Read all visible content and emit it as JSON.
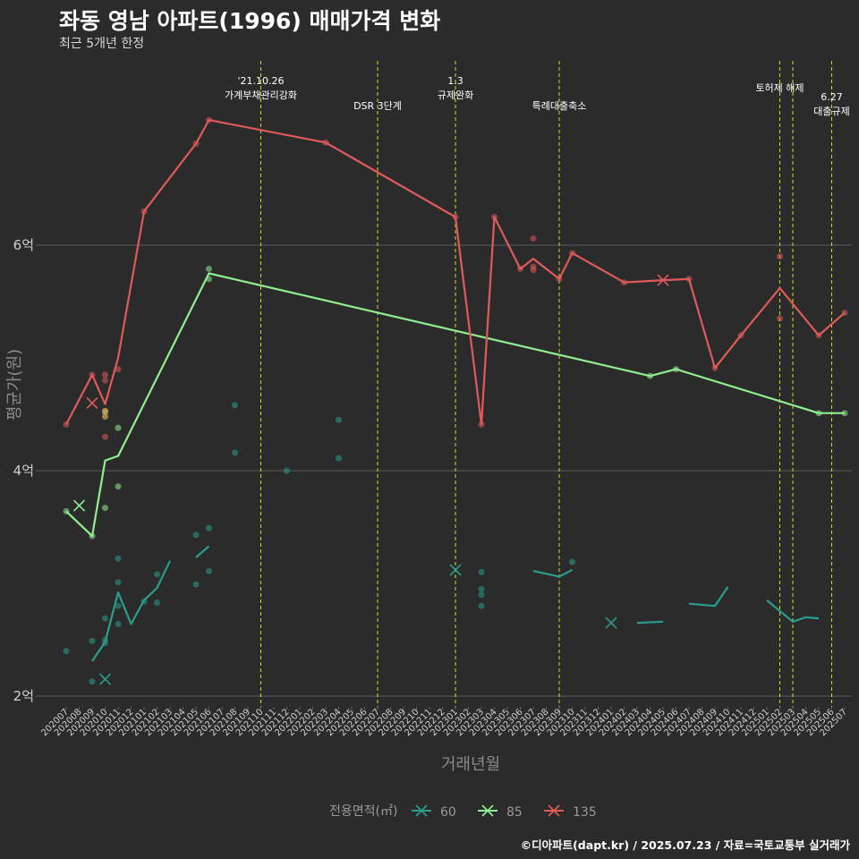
{
  "title": "좌동 영남 아파트(1996) 매매가격 변화",
  "subtitle": "최근 5개년 한정",
  "caption": "©디아파트(dapt.kr) / 2025.07.23 / 자료=국토교통부 실거래가",
  "chart_data": {
    "type": "line",
    "xlabel": "거래년월",
    "ylabel": "평균가(원)",
    "ylim": [
      1.95,
      7.4
    ],
    "yticks": [
      {
        "value": 2,
        "label": "2억"
      },
      {
        "value": 4,
        "label": "4억"
      },
      {
        "value": 6,
        "label": "6억"
      }
    ],
    "grid": true,
    "legend_title": "전용면적(㎡)",
    "legend_position": "bottom",
    "categories": [
      "202007",
      "202008",
      "202009",
      "202010",
      "202011",
      "202012",
      "202101",
      "202102",
      "202103",
      "202104",
      "202105",
      "202106",
      "202107",
      "202108",
      "202109",
      "202110",
      "202111",
      "202112",
      "202201",
      "202202",
      "202203",
      "202204",
      "202205",
      "202206",
      "202207",
      "202208",
      "202209",
      "202210",
      "202211",
      "202212",
      "202301",
      "202302",
      "202303",
      "202304",
      "202305",
      "202306",
      "202307",
      "202308",
      "202309",
      "202310",
      "202311",
      "202312",
      "202401",
      "202402",
      "202403",
      "202404",
      "202405",
      "202406",
      "202407",
      "202408",
      "202409",
      "202410",
      "202411",
      "202412",
      "202501",
      "202502",
      "202503",
      "202504",
      "202505",
      "202506",
      "202507"
    ],
    "events": [
      {
        "x": 15.0,
        "lines": [
          "'21.10.26",
          "가계부채관리강화"
        ],
        "level": 0
      },
      {
        "x": 24.0,
        "lines": [
          "DSR 3단계"
        ],
        "level": 1
      },
      {
        "x": 30.0,
        "lines": [
          "1.3",
          "규제완화"
        ],
        "level": 0
      },
      {
        "x": 38.0,
        "lines": [
          "특례대출축소"
        ],
        "level": 1
      },
      {
        "x": 55.0,
        "lines": [
          "토허제 해제"
        ],
        "level": 2
      },
      {
        "x": 56.0,
        "lines": [],
        "level": 2
      },
      {
        "x": 59.0,
        "lines": [
          "6.27",
          "대출규제"
        ],
        "level": 3
      }
    ],
    "series": [
      {
        "name": "60",
        "color": "#2a9d8f",
        "line": [
          [
            [
              2,
              2.31
            ],
            [
              3,
              2.48
            ],
            [
              4,
              2.92
            ],
            [
              5,
              2.64
            ],
            [
              6,
              2.85
            ],
            [
              7,
              2.96
            ],
            [
              8,
              3.2
            ]
          ],
          [
            [
              10,
              3.23
            ],
            [
              11,
              3.33
            ]
          ],
          [
            [
              31,
              3.12
            ]
          ],
          [
            [
              36,
              3.11
            ],
            [
              38,
              3.06
            ],
            [
              39,
              3.12
            ]
          ],
          [
            [
              42,
              2.65
            ]
          ],
          [
            [
              44,
              2.65
            ],
            [
              46,
              2.66
            ]
          ],
          [
            [
              48,
              2.82
            ],
            [
              50,
              2.8
            ],
            [
              51,
              2.97
            ]
          ],
          [
            [
              54,
              2.85
            ],
            [
              56,
              2.66
            ],
            [
              57,
              2.7
            ],
            [
              58,
              2.69
            ]
          ]
        ],
        "points": [
          [
            0,
            2.4
          ],
          [
            2,
            2.49
          ],
          [
            2,
            2.13
          ],
          [
            3,
            2.69
          ],
          [
            3,
            2.5
          ],
          [
            3,
            2.47
          ],
          [
            4,
            3.22
          ],
          [
            4,
            3.01
          ],
          [
            4,
            2.8
          ],
          [
            4,
            2.64
          ],
          [
            6,
            2.84
          ],
          [
            7,
            3.08
          ],
          [
            7,
            2.83
          ],
          [
            10,
            3.43
          ],
          [
            10,
            2.99
          ],
          [
            11,
            3.49
          ],
          [
            11,
            3.11
          ],
          [
            13,
            4.58
          ],
          [
            13,
            4.16
          ],
          [
            17,
            4.0
          ],
          [
            21,
            4.45
          ],
          [
            21,
            4.11
          ],
          [
            32,
            3.1
          ],
          [
            32,
            2.95
          ],
          [
            32,
            2.9
          ],
          [
            32,
            2.8
          ],
          [
            39,
            3.19
          ]
        ],
        "markers": [
          [
            3,
            2.15
          ],
          [
            30,
            3.12
          ],
          [
            42,
            2.65
          ]
        ]
      },
      {
        "name": "85",
        "color": "#90ee90",
        "line": [
          [
            [
              0,
              3.64
            ],
            [
              2,
              3.42
            ],
            [
              3,
              4.09
            ],
            [
              4,
              4.13
            ],
            [
              11,
              5.75
            ],
            [
              45,
              4.84
            ],
            [
              47,
              4.9
            ],
            [
              58,
              4.51
            ],
            [
              60,
              4.51
            ]
          ]
        ],
        "points": [
          [
            0,
            3.64
          ],
          [
            2,
            3.42
          ],
          [
            3,
            3.67
          ],
          [
            3,
            4.52
          ],
          [
            4,
            4.38
          ],
          [
            4,
            3.86
          ],
          [
            11,
            5.79
          ],
          [
            11,
            5.7
          ],
          [
            45,
            4.84
          ],
          [
            47,
            4.9
          ],
          [
            58,
            4.51
          ],
          [
            60,
            4.51
          ]
        ],
        "markers": [
          [
            1,
            3.69
          ]
        ]
      },
      {
        "name": "135",
        "color": "#e05a5a",
        "line": [
          [
            [
              0,
              4.41
            ],
            [
              2,
              4.85
            ],
            [
              3,
              4.59
            ],
            [
              4,
              5.0
            ],
            [
              6,
              6.3
            ],
            [
              10,
              6.9
            ],
            [
              11,
              7.11
            ],
            [
              20,
              6.91
            ],
            [
              30,
              6.25
            ],
            [
              32,
              4.41
            ],
            [
              33,
              6.25
            ],
            [
              35,
              5.79
            ],
            [
              36,
              5.88
            ],
            [
              38,
              5.7
            ],
            [
              39,
              5.93
            ],
            [
              43,
              5.67
            ],
            [
              46,
              5.69
            ],
            [
              48,
              5.7
            ],
            [
              50,
              4.91
            ],
            [
              52,
              5.2
            ],
            [
              55,
              5.62
            ],
            [
              58,
              5.2
            ],
            [
              60,
              5.4
            ]
          ]
        ],
        "points": [
          [
            0,
            4.41
          ],
          [
            2,
            4.85
          ],
          [
            3,
            4.85
          ],
          [
            3,
            4.8
          ],
          [
            3,
            4.3
          ],
          [
            4,
            4.9
          ],
          [
            6,
            6.3
          ],
          [
            10,
            6.9
          ],
          [
            11,
            7.11
          ],
          [
            20,
            6.91
          ],
          [
            30,
            6.25
          ],
          [
            32,
            4.41
          ],
          [
            33,
            6.25
          ],
          [
            35,
            5.79
          ],
          [
            36,
            6.06
          ],
          [
            36,
            5.81
          ],
          [
            36,
            5.78
          ],
          [
            38,
            5.7
          ],
          [
            39,
            5.93
          ],
          [
            43,
            5.67
          ],
          [
            48,
            5.7
          ],
          [
            50,
            4.91
          ],
          [
            52,
            5.2
          ],
          [
            55,
            5.9
          ],
          [
            55,
            5.35
          ],
          [
            58,
            5.2
          ],
          [
            60,
            5.4
          ]
        ],
        "markers": [
          [
            2,
            4.6
          ],
          [
            46,
            5.69
          ]
        ]
      }
    ],
    "orange_points": [
      [
        3,
        4.53
      ],
      [
        3,
        4.48
      ]
    ]
  }
}
